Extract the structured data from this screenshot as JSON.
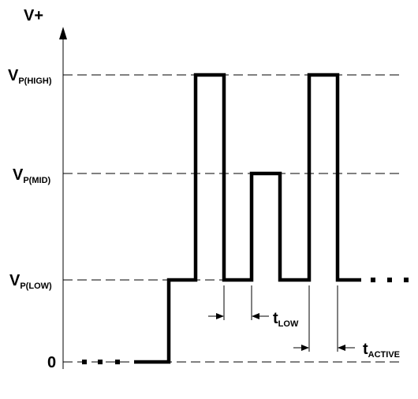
{
  "axis": {
    "y_label": "V+"
  },
  "levels": {
    "high": {
      "main": "V",
      "sub": "P(HIGH)"
    },
    "mid": {
      "main": "V",
      "sub": "P(MID)"
    },
    "low": {
      "main": "V",
      "sub": "P(LOW)"
    },
    "zero": "0"
  },
  "timing": {
    "t_low": {
      "main": "t",
      "sub": "LOW"
    },
    "t_active": {
      "main": "t",
      "sub": "ACTIVE"
    }
  }
}
